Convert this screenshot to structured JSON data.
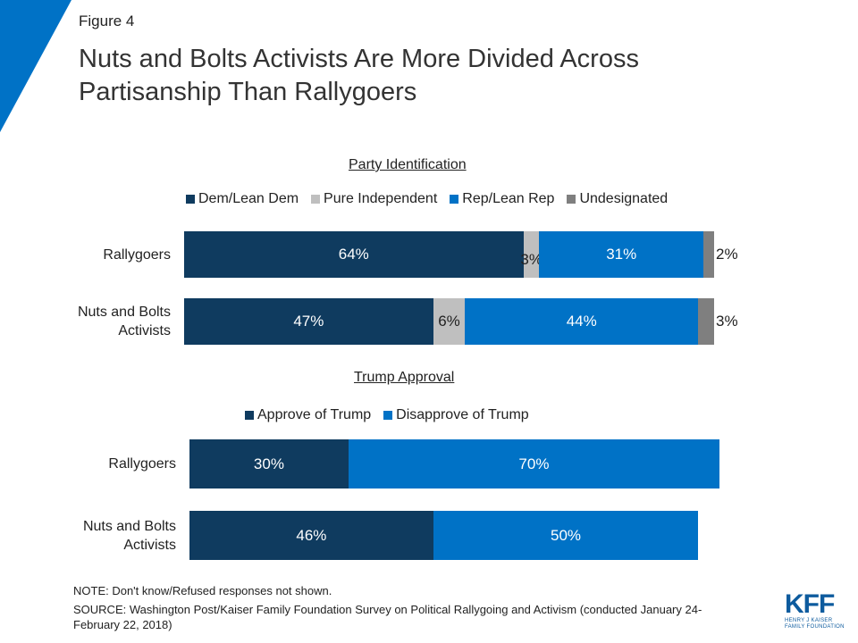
{
  "figure_label": "Figure 4",
  "title_line1": "Nuts and Bolts Activists Are More Divided Across",
  "title_line2": "Partisanship Than Rallygoers",
  "colors": {
    "dem": "#0f3b5f",
    "independent": "#bfbfbf",
    "rep": "#0072c6",
    "undesignated": "#7f7f7f",
    "approve": "#0f3b5f",
    "disapprove": "#0072c6",
    "accent": "#0072c6"
  },
  "chart_data": [
    {
      "type": "bar",
      "orientation": "horizontal",
      "stacked": true,
      "title": "Party Identification",
      "categories": [
        "Rallygoers",
        "Nuts and Bolts Activists"
      ],
      "series": [
        {
          "name": "Dem/Lean Dem",
          "values": [
            64,
            47
          ],
          "labels": [
            "64%",
            "47%"
          ]
        },
        {
          "name": "Pure Independent",
          "values": [
            3,
            6
          ],
          "labels": [
            "3%",
            "6%"
          ]
        },
        {
          "name": "Rep/Lean Rep",
          "values": [
            31,
            44
          ],
          "labels": [
            "31%",
            "44%"
          ]
        },
        {
          "name": "Undesignated",
          "values": [
            2,
            3
          ],
          "labels": [
            "2%",
            "3%"
          ]
        }
      ],
      "legend_position": "top",
      "grid": false
    },
    {
      "type": "bar",
      "orientation": "horizontal",
      "stacked": true,
      "title": "Trump Approval",
      "categories": [
        "Rallygoers",
        "Nuts and Bolts Activists"
      ],
      "series": [
        {
          "name": "Approve of Trump",
          "values": [
            30,
            46
          ],
          "labels": [
            "30%",
            "46%"
          ]
        },
        {
          "name": "Disapprove of Trump",
          "values": [
            70,
            50
          ],
          "labels": [
            "70%",
            "50%"
          ]
        }
      ],
      "legend_position": "top",
      "grid": false
    }
  ],
  "row_labels": {
    "party": [
      "Rallygoers",
      "Nuts and Bolts\nActivists"
    ],
    "trump": [
      "Rallygoers",
      "Nuts and Bolts\nActivists"
    ]
  },
  "note": "NOTE: Don't know/Refused responses not shown.",
  "source": "SOURCE: Washington Post/Kaiser Family Foundation Survey on Political Rallygoing and Activism (conducted January 24-February 22, 2018)",
  "logo": {
    "main": "KFF",
    "sub1": "HENRY J KAISER",
    "sub2": "FAMILY FOUNDATION"
  }
}
